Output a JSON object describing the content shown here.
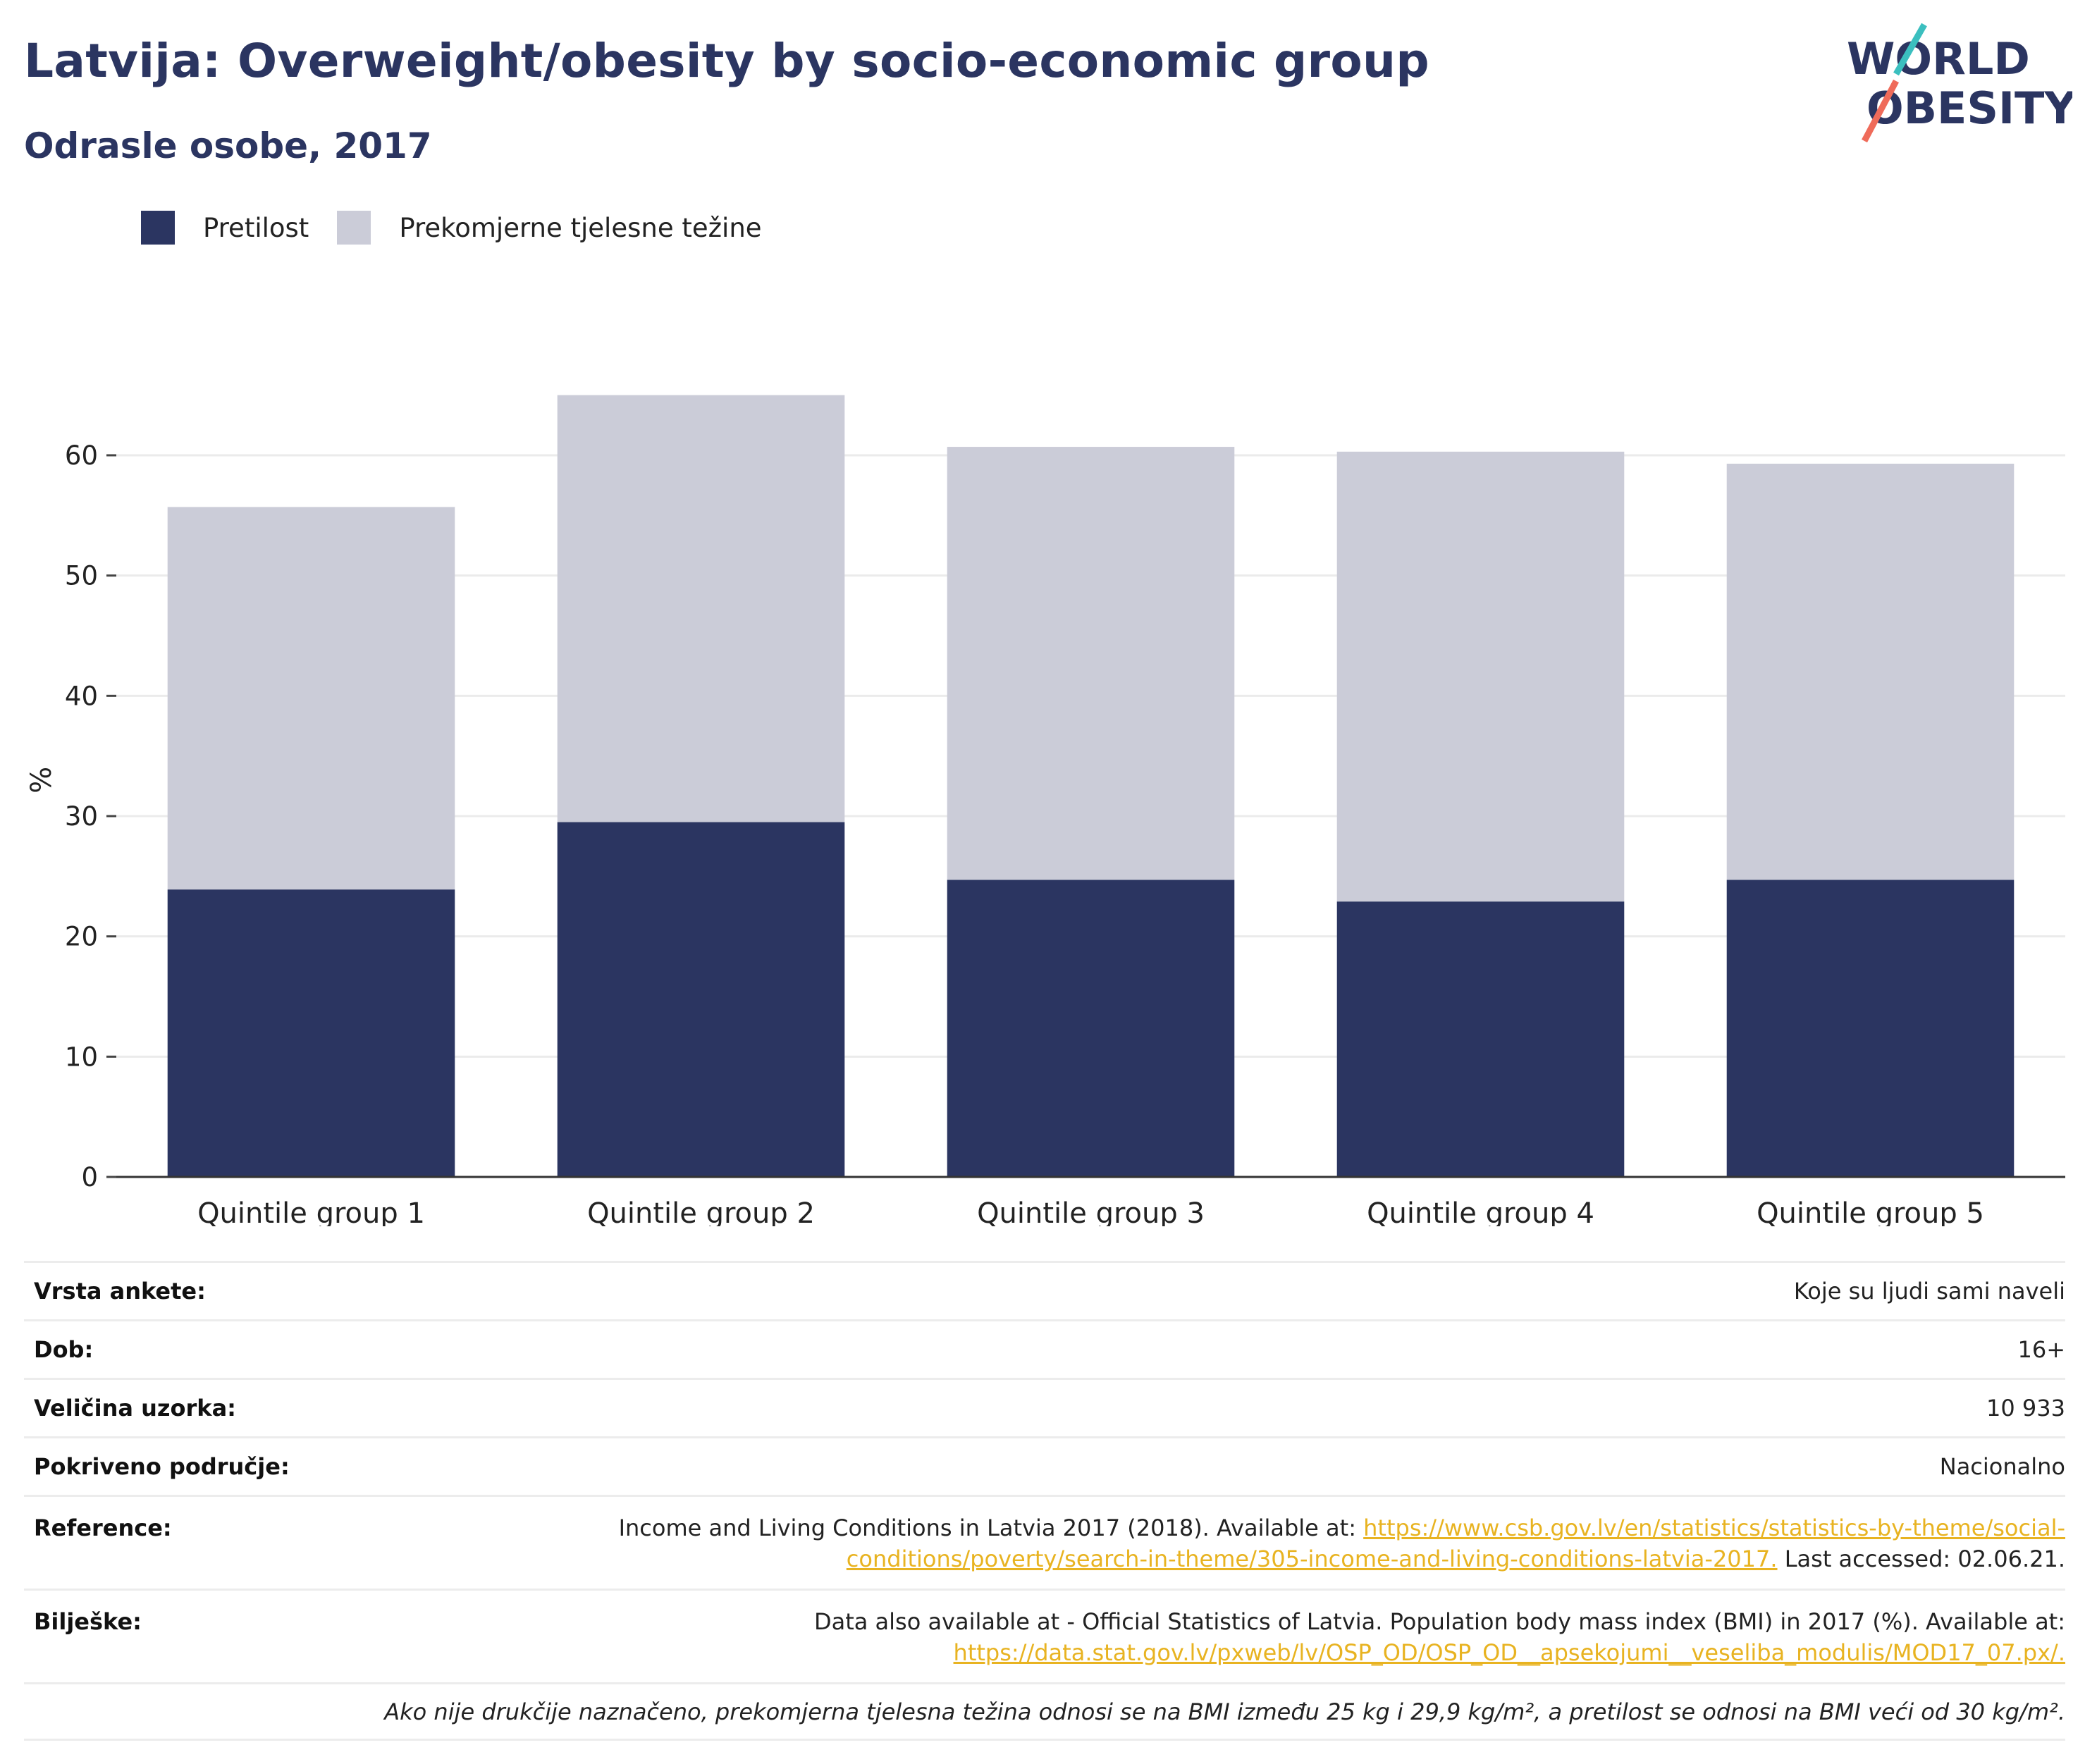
{
  "header": {
    "title": "Latvija: Overweight/obesity by socio-economic group",
    "subtitle": "Odrasle osobe, 2017"
  },
  "logo": {
    "line1": "WORLD",
    "line2": "OBESITY"
  },
  "legend": [
    {
      "label": "Pretilost",
      "color": "#2b3561"
    },
    {
      "label": "Prekomjerne tjelesne težine",
      "color": "#cbccd8"
    }
  ],
  "chart_data": {
    "type": "bar",
    "stacked": true,
    "categories": [
      "Quintile group 1",
      "Quintile group 2",
      "Quintile group 3",
      "Quintile group 4",
      "Quintile group 5"
    ],
    "series": [
      {
        "name": "Pretilost",
        "color": "#2b3561",
        "values": [
          23.9,
          29.5,
          24.7,
          22.9,
          24.7
        ]
      },
      {
        "name": "Prekomjerne tjelesne težine",
        "color": "#cbccd8",
        "values": [
          31.8,
          35.5,
          36.0,
          37.4,
          34.6
        ]
      }
    ],
    "ylabel": "%",
    "ylim": [
      0,
      65
    ],
    "yticks": [
      0,
      10,
      20,
      30,
      40,
      50,
      60
    ],
    "grid": true,
    "legend_position": "top-left"
  },
  "info": {
    "survey_type": {
      "label": "Vrsta ankete:",
      "value": "Koje su ljudi sami naveli"
    },
    "age": {
      "label": "Dob:",
      "value": "16+"
    },
    "sample_size": {
      "label": "Veličina uzorka:",
      "value": "10 933"
    },
    "coverage": {
      "label": "Pokriveno područje:",
      "value": "Nacionalno"
    },
    "reference": {
      "label": "Reference:",
      "text_before": "Income and Living Conditions in Latvia 2017 (2018). Available at: ",
      "link_part1": "https://www.csb.gov.lv/en/statistics/statistics-by-theme/social-",
      "link_part2": "conditions/poverty/search-in-theme/305-income-and-living-conditions-latvia-2017.",
      "text_after": " Last accessed: 02.06.21."
    },
    "notes": {
      "label": "Bilješke:",
      "text": "Data also available at - Official Statistics of Latvia. Population body mass index (BMI) in 2017 (%). Available at:",
      "link": "https://data.stat.gov.lv/pxweb/lv/OSP_OD/OSP_OD__apsekojumi__veseliba_modulis/MOD17_07.px/."
    },
    "footnote": "Ako nije drukčije naznačeno, prekomjerna tjelesna težina odnosi se na BMI između 25 kg i 29,9 kg/m², a pretilost se odnosi na BMI veći od 30 kg/m²."
  }
}
